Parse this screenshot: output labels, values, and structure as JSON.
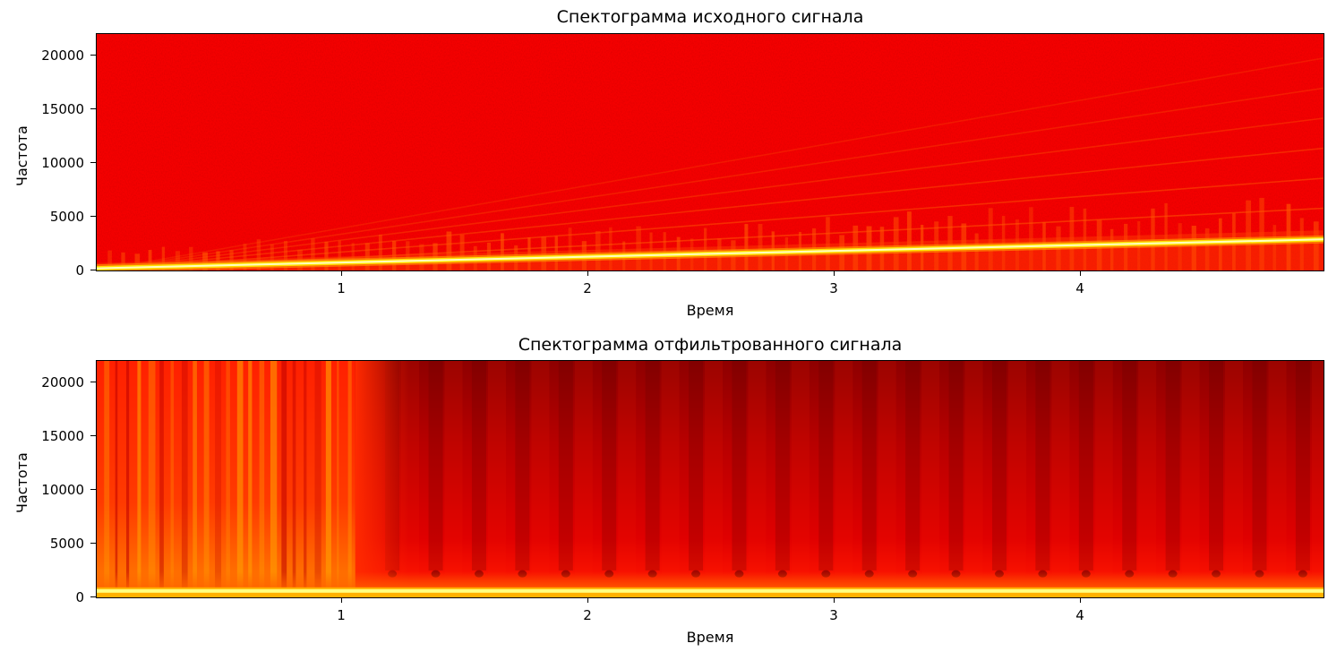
{
  "chart_data": [
    {
      "type": "heatmap",
      "title": "Спектограмма исходного сигнала",
      "xlabel": "Время",
      "ylabel": "Частота",
      "xlim": [
        0,
        4.98
      ],
      "ylim": [
        0,
        22050
      ],
      "xticks": [
        1,
        2,
        3,
        4
      ],
      "yticks": [
        0,
        5000,
        10000,
        15000,
        20000
      ],
      "xtick_labels": [
        "1",
        "2",
        "3",
        "4"
      ],
      "ytick_labels": [
        "0",
        "5000",
        "10000",
        "15000",
        "20000"
      ],
      "colormap": "hot",
      "dominant_line": {
        "x": [
          0,
          4.98
        ],
        "y": [
          200,
          2900
        ]
      },
      "harmonic_lines_end_freq": [
        5800,
        8600,
        11400,
        14200,
        17000,
        19800
      ]
    },
    {
      "type": "heatmap",
      "title": "Спектограмма отфильтрованного сигнала",
      "xlabel": "Время",
      "ylabel": "Частота",
      "xlim": [
        0,
        4.98
      ],
      "ylim": [
        0,
        22050
      ],
      "xticks": [
        1,
        2,
        3,
        4
      ],
      "yticks": [
        0,
        5000,
        10000,
        15000,
        20000
      ],
      "xtick_labels": [
        "1",
        "2",
        "3",
        "4"
      ],
      "ytick_labels": [
        "0",
        "5000",
        "10000",
        "15000",
        "20000"
      ],
      "colormap": "hot",
      "cutoff_freq": 600,
      "transition_time": 1.05
    }
  ],
  "colors": {
    "dark_red": "#8b0000",
    "red": "#ff0000",
    "orange": "#ff7a00",
    "yellow": "#ffff40",
    "white": "#ffffff"
  }
}
